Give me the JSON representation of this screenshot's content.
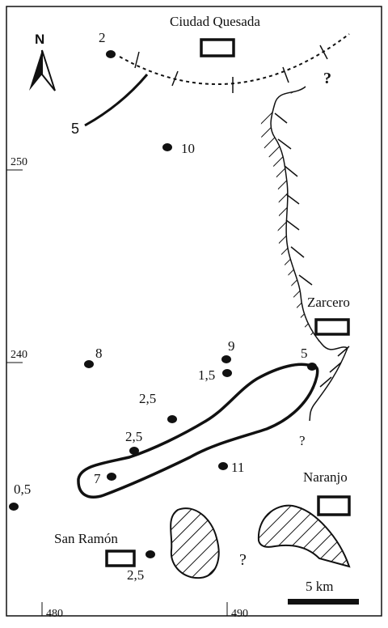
{
  "north_arrow": {
    "label": "N"
  },
  "towns": {
    "ciudad_quesada": "Ciudad Quesada",
    "zarcero": "Zarcero",
    "naranjo": "Naranjo",
    "san_ramon": "San Ramón"
  },
  "axis_ticks": {
    "y_250": "250",
    "y_240": "240",
    "x_480": "480",
    "x_490": "490"
  },
  "points": {
    "p_2": "2",
    "p_10": "10",
    "p_8": "8",
    "p_9": "9",
    "p_1_5": "1,5",
    "p_5_zarcero": "5",
    "p_2_5_a": "2,5",
    "p_2_5_b": "2,5",
    "p_7": "7",
    "p_11": "11",
    "p_0_5": "0,5",
    "p_2_5_sr": "2,5"
  },
  "contour_label": "5",
  "question_marks": {
    "q1": "?",
    "q2": "?",
    "q3": "?"
  },
  "scale_bar": {
    "label": "5 km"
  },
  "colors": {
    "ink": "#111111",
    "background": "#ffffff"
  }
}
